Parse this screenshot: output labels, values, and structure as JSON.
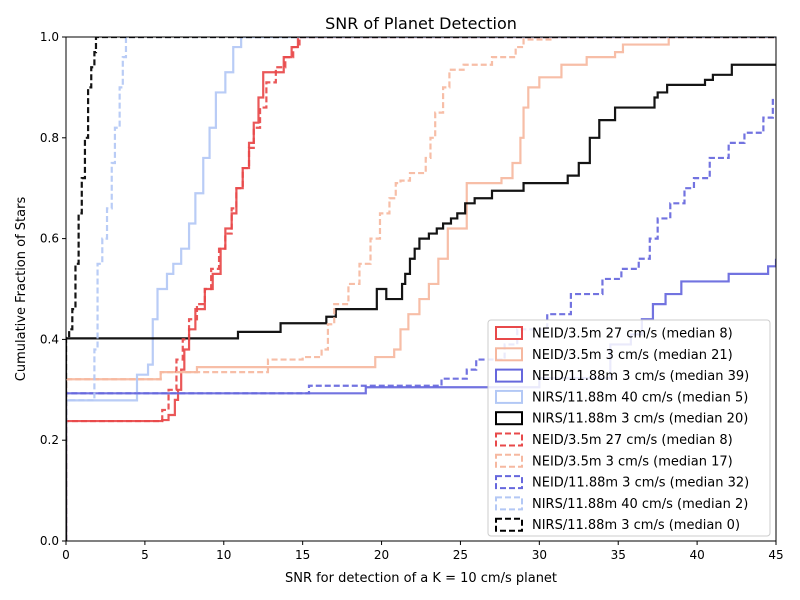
{
  "chart_data": {
    "type": "line",
    "title": "SNR of Planet Detection",
    "xlabel": "SNR for detection of a K = 10 cm/s planet",
    "ylabel": "Cumulative Fraction of Stars",
    "xlim": [
      0,
      45
    ],
    "ylim": [
      0.0,
      1.0
    ],
    "xticks": [
      "0",
      "5",
      "10",
      "15",
      "20",
      "25",
      "30",
      "35",
      "40",
      "45"
    ],
    "yticks": [
      "0.0",
      "0.2",
      "0.4",
      "0.6",
      "0.8",
      "1.0"
    ],
    "grid": false,
    "legend_position": "lower-right",
    "series": [
      {
        "name": "NEID/3.5m 27 cm/s (median 8)",
        "color": "#e8494a",
        "dash": "solid",
        "x": [
          0,
          6.1,
          6.5,
          6.9,
          7.1,
          7.3,
          7.5,
          7.8,
          8.2,
          8.8,
          9.3,
          9.8,
          10.1,
          10.5,
          10.8,
          11.2,
          11.6,
          11.9,
          12.2,
          12.5,
          12.8,
          13.8,
          14.3,
          14.7
        ],
        "y": [
          0.238,
          0.24,
          0.25,
          0.28,
          0.3,
          0.34,
          0.38,
          0.42,
          0.46,
          0.5,
          0.53,
          0.58,
          0.62,
          0.65,
          0.7,
          0.74,
          0.79,
          0.83,
          0.88,
          0.93,
          0.93,
          0.96,
          0.98,
          1.0
        ]
      },
      {
        "name": "NEID/3.5m 3 cm/s (median 21)",
        "color": "#f6b8a0",
        "dash": "solid",
        "x": [
          0,
          6.0,
          8.3,
          19.6,
          20.8,
          21.2,
          21.7,
          22.4,
          23.0,
          23.6,
          24.2,
          25.4,
          27.6,
          28.3,
          28.8,
          29.0,
          29.3,
          30.0,
          31.4,
          33.0,
          34.8,
          35.3,
          38.2,
          45
        ],
        "y": [
          0.321,
          0.335,
          0.345,
          0.365,
          0.38,
          0.42,
          0.45,
          0.48,
          0.51,
          0.56,
          0.62,
          0.71,
          0.72,
          0.75,
          0.8,
          0.86,
          0.9,
          0.92,
          0.945,
          0.96,
          0.97,
          0.985,
          1.0,
          1.0
        ]
      },
      {
        "name": "NEID/11.88m 3 cm/s (median 39)",
        "color": "#6667dd",
        "dash": "solid",
        "x": [
          0,
          5.5,
          8.3,
          19.0,
          30.0,
          34.5,
          35.8,
          36.5,
          37.2,
          38.0,
          39.0,
          42.0,
          44.5,
          45
        ],
        "y": [
          0.293,
          0.293,
          0.293,
          0.305,
          0.323,
          0.39,
          0.41,
          0.44,
          0.47,
          0.49,
          0.515,
          0.53,
          0.545,
          0.56
        ]
      },
      {
        "name": "NIRS/11.88m 40 cm/s (median 5)",
        "color": "#b3c8f5",
        "dash": "solid",
        "x": [
          0,
          4.5,
          5.2,
          5.5,
          5.8,
          6.4,
          6.8,
          7.3,
          7.8,
          8.2,
          8.7,
          9.1,
          9.5,
          10.1,
          10.6,
          11.1
        ],
        "y": [
          0.279,
          0.33,
          0.35,
          0.44,
          0.5,
          0.53,
          0.55,
          0.58,
          0.63,
          0.69,
          0.76,
          0.82,
          0.89,
          0.93,
          0.98,
          1.0
        ]
      },
      {
        "name": "NIRS/11.88m 3 cm/s (median 20)",
        "color": "#000000",
        "dash": "solid",
        "x": [
          0,
          10.9,
          13.6,
          16.5,
          17.1,
          19.7,
          20.3,
          21.3,
          21.5,
          21.8,
          22.1,
          22.4,
          23.0,
          23.5,
          23.9,
          24.4,
          24.8,
          25.3,
          25.9,
          27.0,
          29.0,
          31.8,
          32.5,
          33.2,
          33.8,
          34.8,
          37.3,
          37.5,
          38.1,
          40.5,
          41.0,
          42.2,
          45
        ],
        "y": [
          0.402,
          0.415,
          0.432,
          0.445,
          0.46,
          0.5,
          0.48,
          0.51,
          0.53,
          0.56,
          0.58,
          0.6,
          0.61,
          0.62,
          0.63,
          0.64,
          0.65,
          0.67,
          0.68,
          0.695,
          0.71,
          0.725,
          0.75,
          0.8,
          0.835,
          0.86,
          0.88,
          0.89,
          0.905,
          0.915,
          0.925,
          0.945,
          0.945
        ]
      },
      {
        "name": "NEID/3.5m 27 cm/s (median 8)",
        "color": "#e8494a",
        "dash": "dashed",
        "x": [
          0,
          6.1,
          6.5,
          7.0,
          7.4,
          7.8,
          8.3,
          8.8,
          9.2,
          9.7,
          10.1,
          10.5,
          10.8,
          11.2,
          11.6,
          11.9,
          12.3,
          12.7,
          13.3,
          13.9,
          14.4,
          14.8
        ],
        "y": [
          0.238,
          0.26,
          0.3,
          0.36,
          0.4,
          0.44,
          0.47,
          0.5,
          0.54,
          0.58,
          0.61,
          0.66,
          0.7,
          0.74,
          0.78,
          0.82,
          0.86,
          0.91,
          0.94,
          0.96,
          0.98,
          1.0
        ]
      },
      {
        "name": "NEID/3.5m 3 cm/s (median 17)",
        "color": "#f6b8a0",
        "dash": "dashed",
        "x": [
          0,
          6.0,
          12.8,
          15.0,
          16.2,
          16.6,
          17.0,
          17.9,
          18.6,
          19.3,
          19.9,
          20.5,
          20.9,
          21.2,
          21.8,
          22.8,
          23.1,
          23.4,
          23.9,
          24.3,
          25.2,
          27.0,
          28.5,
          29.0,
          30.9
        ],
        "y": [
          0.321,
          0.335,
          0.36,
          0.365,
          0.38,
          0.43,
          0.47,
          0.51,
          0.55,
          0.6,
          0.65,
          0.68,
          0.71,
          0.715,
          0.73,
          0.76,
          0.8,
          0.85,
          0.9,
          0.935,
          0.945,
          0.96,
          0.98,
          0.995,
          1.0
        ]
      },
      {
        "name": "NEID/11.88m 3 cm/s (median 32)",
        "color": "#6667dd",
        "dash": "dashed",
        "x": [
          0,
          5.5,
          15.4,
          20.0,
          23.8,
          25.4,
          26.0,
          27.8,
          28.6,
          30.5,
          32.0,
          34.0,
          35.2,
          36.3,
          37.0,
          37.5,
          38.3,
          39.2,
          39.8,
          40.8,
          42.0,
          43.0,
          44.2,
          44.8
        ],
        "y": [
          0.293,
          0.293,
          0.308,
          0.308,
          0.322,
          0.34,
          0.36,
          0.39,
          0.42,
          0.45,
          0.49,
          0.52,
          0.54,
          0.56,
          0.6,
          0.64,
          0.67,
          0.7,
          0.72,
          0.76,
          0.79,
          0.81,
          0.84,
          0.875
        ]
      },
      {
        "name": "NIRS/11.88m 40 cm/s (median 2)",
        "color": "#b3c8f5",
        "dash": "dashed",
        "x": [
          0,
          1.8,
          2.0,
          2.3,
          2.6,
          2.9,
          3.1,
          3.4,
          3.6,
          3.8
        ],
        "y": [
          0.279,
          0.38,
          0.55,
          0.6,
          0.66,
          0.75,
          0.82,
          0.9,
          0.96,
          1.0
        ]
      },
      {
        "name": "NIRS/11.88m 3 cm/s (median 0)",
        "color": "#000000",
        "dash": "dashed",
        "x": [
          0,
          0.2,
          0.4,
          0.6,
          0.8,
          1.0,
          1.2,
          1.4,
          1.6,
          1.8,
          1.9
        ],
        "y": [
          0.403,
          0.42,
          0.46,
          0.55,
          0.65,
          0.72,
          0.8,
          0.9,
          0.94,
          0.97,
          1.0
        ]
      }
    ]
  }
}
